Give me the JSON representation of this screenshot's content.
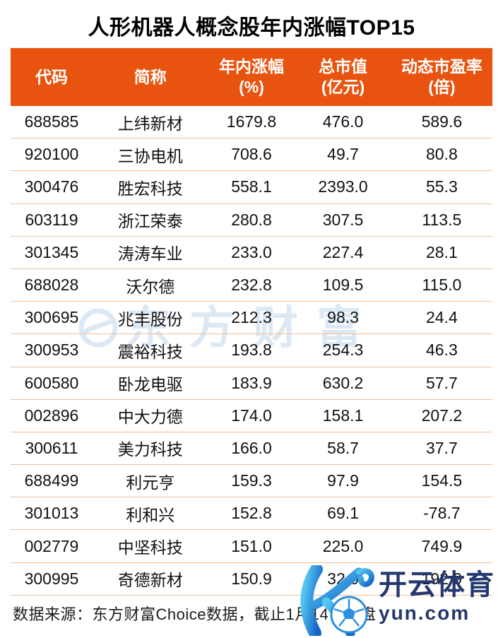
{
  "page": {
    "title": "人形机器人概念股年内涨幅TOP15",
    "source_note": "数据来源：东方财富Choice数据，截止1月14日收盘"
  },
  "table": {
    "columns": [
      {
        "line1": "代码",
        "line2": ""
      },
      {
        "line1": "简称",
        "line2": ""
      },
      {
        "line1": "年内涨幅",
        "line2": "(%)"
      },
      {
        "line1": "总市值",
        "line2": "(亿元)"
      },
      {
        "line1": "动态市盈率",
        "line2": "(倍)"
      }
    ],
    "rows": [
      [
        "688585",
        "上纬新材",
        "1679.8",
        "476.0",
        "589.6"
      ],
      [
        "920100",
        "三协电机",
        "708.6",
        "49.7",
        "80.8"
      ],
      [
        "300476",
        "胜宏科技",
        "558.1",
        "2393.0",
        "55.3"
      ],
      [
        "603119",
        "浙江荣泰",
        "280.8",
        "307.5",
        "113.5"
      ],
      [
        "301345",
        "涛涛车业",
        "233.0",
        "227.4",
        "28.1"
      ],
      [
        "688028",
        "沃尔德",
        "232.8",
        "109.5",
        "115.0"
      ],
      [
        "300695",
        "兆丰股份",
        "212.3",
        "98.3",
        "24.4"
      ],
      [
        "300953",
        "震裕科技",
        "193.8",
        "254.3",
        "46.3"
      ],
      [
        "600580",
        "卧龙电驱",
        "183.9",
        "630.2",
        "57.7"
      ],
      [
        "002896",
        "中大力德",
        "174.0",
        "158.1",
        "207.2"
      ],
      [
        "300611",
        "美力科技",
        "166.0",
        "58.7",
        "37.7"
      ],
      [
        "688499",
        "利元亨",
        "159.3",
        "97.9",
        "154.5"
      ],
      [
        "301013",
        "利和兴",
        "152.8",
        "69.1",
        "-78.7"
      ],
      [
        "002779",
        "中坚科技",
        "151.0",
        "225.0",
        "749.9"
      ],
      [
        "300995",
        "奇德新材",
        "150.9",
        "32.0",
        "192.9"
      ]
    ]
  },
  "watermarks": {
    "center_text": "东方财富",
    "bottom_brand_text": "开云体育",
    "bottom_domain_text": "yun.com"
  },
  "colors": {
    "header_bg": "#E8540F",
    "header_text": "#FFFFFF",
    "row_divider": "#F3BE97",
    "body_text": "#111111",
    "center_watermark": "#DCE9F4",
    "bottom_watermark_text": "#24386F",
    "k_logo_gradient_start": "#55C8F2",
    "k_logo_gradient_end": "#1565C8"
  },
  "chart_data": {
    "type": "table",
    "title": "人形机器人概念股年内涨幅TOP15",
    "columns": [
      "代码",
      "简称",
      "年内涨幅(%)",
      "总市值(亿元)",
      "动态市盈率(倍)"
    ],
    "rows": [
      [
        "688585",
        "上纬新材",
        1679.8,
        476.0,
        589.6
      ],
      [
        "920100",
        "三协电机",
        708.6,
        49.7,
        80.8
      ],
      [
        "300476",
        "胜宏科技",
        558.1,
        2393.0,
        55.3
      ],
      [
        "603119",
        "浙江荣泰",
        280.8,
        307.5,
        113.5
      ],
      [
        "301345",
        "涛涛车业",
        233.0,
        227.4,
        28.1
      ],
      [
        "688028",
        "沃尔德",
        232.8,
        109.5,
        115.0
      ],
      [
        "300695",
        "兆丰股份",
        212.3,
        98.3,
        24.4
      ],
      [
        "300953",
        "震裕科技",
        193.8,
        254.3,
        46.3
      ],
      [
        "600580",
        "卧龙电驱",
        183.9,
        630.2,
        57.7
      ],
      [
        "002896",
        "中大力德",
        174.0,
        158.1,
        207.2
      ],
      [
        "300611",
        "美力科技",
        166.0,
        58.7,
        37.7
      ],
      [
        "688499",
        "利元亨",
        159.3,
        97.9,
        154.5
      ],
      [
        "301013",
        "利和兴",
        152.8,
        69.1,
        -78.7
      ],
      [
        "002779",
        "中坚科技",
        151.0,
        225.0,
        749.9
      ],
      [
        "300995",
        "奇德新材",
        150.9,
        32.0,
        192.9
      ]
    ],
    "source_note": "数据来源：东方财富Choice数据，截止1月14日收盘"
  }
}
